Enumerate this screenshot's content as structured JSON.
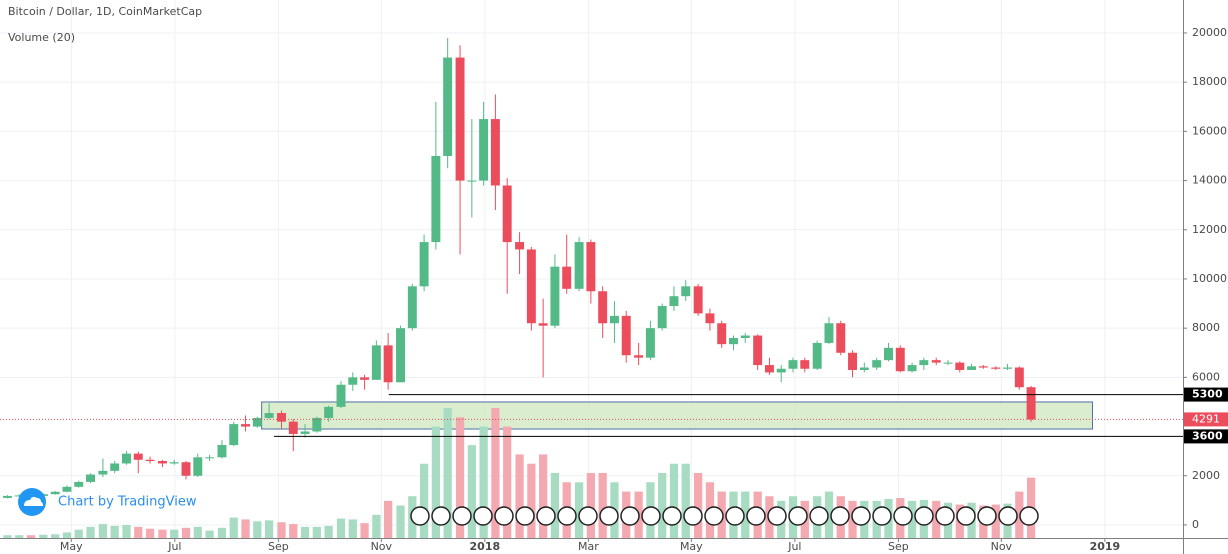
{
  "chart_data": {
    "type": "candlestick",
    "title": "Bitcoin / Dollar, 1D, CoinMarketCap",
    "volume_title": "Volume (20)",
    "watermark": "Chart by TradingView",
    "up_color": "#53b987",
    "down_color": "#eb4d5c",
    "up_volume_color": "#a8dcc2",
    "down_volume_color": "#f4a9b0",
    "grid": true,
    "xlim": [
      2017.218,
      2019.126
    ],
    "xticks": [
      {
        "value": 2017.333,
        "label": "May"
      },
      {
        "value": 2017.5,
        "label": "Jul"
      },
      {
        "value": 2017.667,
        "label": "Sep"
      },
      {
        "value": 2017.833,
        "label": "Nov"
      },
      2018,
      {
        "value": 2018.167,
        "label": "Mar"
      },
      {
        "value": 2018.333,
        "label": "May"
      },
      {
        "value": 2018.5,
        "label": "Jul"
      },
      {
        "value": 2018.667,
        "label": "Sep"
      },
      {
        "value": 2018.833,
        "label": "Nov"
      },
      2019
    ],
    "ylim": [
      -530,
      21340
    ],
    "yticks": [
      0,
      2000,
      6000,
      8000,
      10000,
      12000,
      14000,
      16000,
      18000,
      20000
    ],
    "x": [
      2017.23,
      2017.249,
      2017.268,
      2017.288,
      2017.307,
      2017.326,
      2017.345,
      2017.364,
      2017.384,
      2017.403,
      2017.422,
      2017.441,
      2017.46,
      2017.48,
      2017.499,
      2017.518,
      2017.537,
      2017.556,
      2017.576,
      2017.595,
      2017.614,
      2017.633,
      2017.652,
      2017.672,
      2017.691,
      2017.71,
      2017.729,
      2017.748,
      2017.768,
      2017.787,
      2017.806,
      2017.825,
      2017.844,
      2017.864,
      2017.883,
      2017.902,
      2017.921,
      2017.94,
      2017.96,
      2017.979,
      2017.998,
      2018.017,
      2018.036,
      2018.056,
      2018.075,
      2018.094,
      2018.113,
      2018.132,
      2018.152,
      2018.171,
      2018.19,
      2018.209,
      2018.228,
      2018.248,
      2018.267,
      2018.286,
      2018.305,
      2018.324,
      2018.344,
      2018.363,
      2018.382,
      2018.401,
      2018.42,
      2018.44,
      2018.459,
      2018.478,
      2018.497,
      2018.516,
      2018.536,
      2018.555,
      2018.574,
      2018.593,
      2018.612,
      2018.632,
      2018.651,
      2018.67,
      2018.689,
      2018.708,
      2018.728,
      2018.747,
      2018.766,
      2018.785,
      2018.804,
      2018.824,
      2018.843,
      2018.862,
      2018.881
    ],
    "open": [
      1100,
      1180,
      1200,
      1180,
      1250,
      1350,
      1550,
      1750,
      2050,
      2200,
      2500,
      2900,
      2650,
      2600,
      2500,
      2550,
      2000,
      2750,
      2750,
      3250,
      4100,
      4000,
      4350,
      4550,
      4200,
      3700,
      3800,
      4350,
      4800,
      5700,
      6000,
      5900,
      7300,
      5800,
      8000,
      9700,
      11500,
      15000,
      19000,
      14000,
      14000,
      16500,
      13800,
      11500,
      11200,
      8200,
      8100,
      10500,
      9600,
      11500,
      9500,
      8200,
      8500,
      6900,
      6800,
      8000,
      8900,
      9300,
      9700,
      8600,
      8200,
      7350,
      7600,
      7700,
      6500,
      6200,
      6350,
      6700,
      6350,
      7400,
      8200,
      7000,
      6300,
      6400,
      6700,
      7200,
      6250,
      6500,
      6700,
      6600,
      6600,
      6300,
      6450,
      6400,
      6350,
      6400,
      5600
    ],
    "high": [
      1210,
      1250,
      1230,
      1280,
      1380,
      1600,
      1800,
      2100,
      2700,
      2600,
      3000,
      2980,
      2780,
      2650,
      2650,
      2600,
      2900,
      2850,
      3450,
      4200,
      4450,
      4400,
      4950,
      4650,
      4300,
      4100,
      4400,
      4850,
      5850,
      6200,
      6100,
      7500,
      7800,
      8100,
      9800,
      11800,
      17200,
      19800,
      19500,
      16500,
      17200,
      17500,
      14100,
      11900,
      11300,
      9200,
      11000,
      11800,
      11700,
      11600,
      9700,
      9100,
      8700,
      7400,
      8300,
      9000,
      9700,
      9950,
      9800,
      8800,
      8300,
      7700,
      7800,
      7750,
      6800,
      6500,
      6800,
      6800,
      7500,
      8450,
      8300,
      7100,
      6600,
      6800,
      7400,
      7300,
      6600,
      6800,
      6800,
      6700,
      6650,
      6550,
      6500,
      6450,
      6550,
      6450,
      5650
    ],
    "low": [
      1080,
      1150,
      1130,
      1160,
      1230,
      1330,
      1520,
      1700,
      1950,
      2100,
      2450,
      2100,
      2500,
      2350,
      2450,
      1850,
      1950,
      2600,
      2700,
      3200,
      3800,
      3950,
      4300,
      3900,
      3000,
      3550,
      3750,
      4200,
      4750,
      5450,
      5500,
      5900,
      5500,
      5800,
      7900,
      9500,
      11200,
      14500,
      11000,
      12500,
      13800,
      12800,
      9400,
      10200,
      7900,
      6000,
      8000,
      9400,
      9500,
      9000,
      7600,
      7400,
      6600,
      6500,
      6700,
      7900,
      8700,
      9100,
      8500,
      7900,
      7200,
      7100,
      7400,
      6300,
      6100,
      5800,
      6200,
      6200,
      6300,
      7350,
      6900,
      6000,
      6200,
      6300,
      6650,
      6200,
      6200,
      6300,
      6500,
      6500,
      6200,
      6350,
      6350,
      6300,
      6300,
      5500,
      4200
    ],
    "close": [
      1180,
      1200,
      1180,
      1250,
      1350,
      1550,
      1750,
      2050,
      2200,
      2500,
      2900,
      2650,
      2600,
      2500,
      2550,
      2000,
      2750,
      2750,
      3250,
      4100,
      4000,
      4350,
      4550,
      4200,
      3700,
      3800,
      4350,
      4800,
      5700,
      6000,
      5900,
      7300,
      5800,
      8000,
      9700,
      11500,
      15000,
      19000,
      14000,
      14000,
      16500,
      13800,
      11500,
      11200,
      8200,
      8100,
      10500,
      9600,
      11500,
      9500,
      8200,
      8500,
      6900,
      6800,
      8000,
      8900,
      9300,
      9700,
      8600,
      8200,
      7350,
      7600,
      7700,
      6500,
      6200,
      6350,
      6700,
      6350,
      7400,
      8200,
      7000,
      6300,
      6400,
      6700,
      7200,
      6250,
      6500,
      6700,
      6600,
      6600,
      6300,
      6450,
      6400,
      6350,
      6400,
      5600,
      4291
    ],
    "volume": [
      0.3,
      0.3,
      0.3,
      0.35,
      0.4,
      0.6,
      0.9,
      1.2,
      1.5,
      1.3,
      1.4,
      1.2,
      1.0,
      0.9,
      0.9,
      1.1,
      1.2,
      0.8,
      1.1,
      2.2,
      2.0,
      1.8,
      1.9,
      1.7,
      1.5,
      1.2,
      1.2,
      1.3,
      2.1,
      2.0,
      1.6,
      2.5,
      4.0,
      3.5,
      4.5,
      8.0,
      12,
      14,
      13,
      10,
      12,
      14,
      12,
      9,
      8,
      9,
      7,
      6,
      6,
      7,
      7,
      6,
      5,
      5,
      6,
      7,
      8,
      8,
      7,
      6,
      5,
      5,
      5,
      5,
      4.5,
      4,
      4.5,
      4,
      4.5,
      5,
      4.5,
      4,
      4,
      4,
      4.2,
      4.3,
      4,
      4.1,
      4.0,
      3.8,
      3.6,
      3.8,
      3.5,
      3.6,
      3.7,
      5,
      6.5
    ],
    "levels": [
      {
        "value": 5300,
        "start": 2017.845
      },
      {
        "value": 3600,
        "start": 2017.66
      }
    ],
    "zone": {
      "x": [
        2017.64,
        2018.98
      ],
      "y": [
        3900,
        5000
      ]
    }
  }
}
